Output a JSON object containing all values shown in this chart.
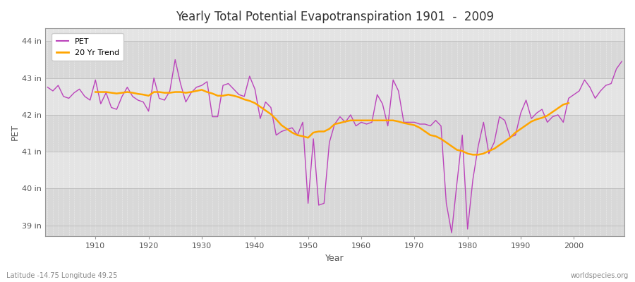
{
  "title": "Yearly Total Potential Evapotranspiration 1901  -  2009",
  "xlabel": "Year",
  "ylabel": "PET",
  "lat_lon_label": "Latitude -14.75 Longitude 49.25",
  "source_label": "worldspecies.org",
  "fig_bg_color": "#ffffff",
  "plot_bg_color": "#e8e8e8",
  "band_light": "#e0e0e0",
  "band_dark": "#d0d0d0",
  "grid_color": "#ffffff",
  "pet_color": "#bb44bb",
  "trend_color": "#ffa500",
  "ylim_min": 38.7,
  "ylim_max": 44.35,
  "ytick_labels": [
    "39 in",
    "40 in",
    "41 in",
    "42 in",
    "43 in",
    "44 in"
  ],
  "ytick_values": [
    39,
    40,
    41,
    42,
    43,
    44
  ],
  "years": [
    1901,
    1902,
    1903,
    1904,
    1905,
    1906,
    1907,
    1908,
    1909,
    1910,
    1911,
    1912,
    1913,
    1914,
    1915,
    1916,
    1917,
    1918,
    1919,
    1920,
    1921,
    1922,
    1923,
    1924,
    1925,
    1926,
    1927,
    1928,
    1929,
    1930,
    1931,
    1932,
    1933,
    1934,
    1935,
    1936,
    1937,
    1938,
    1939,
    1940,
    1941,
    1942,
    1943,
    1944,
    1945,
    1946,
    1947,
    1948,
    1949,
    1950,
    1951,
    1952,
    1953,
    1954,
    1955,
    1956,
    1957,
    1958,
    1959,
    1960,
    1961,
    1962,
    1963,
    1964,
    1965,
    1966,
    1967,
    1968,
    1969,
    1970,
    1971,
    1972,
    1973,
    1974,
    1975,
    1976,
    1977,
    1978,
    1979,
    1980,
    1981,
    1982,
    1983,
    1984,
    1985,
    1986,
    1987,
    1988,
    1989,
    1990,
    1991,
    1992,
    1993,
    1994,
    1995,
    1996,
    1997,
    1998,
    1999,
    2000,
    2001,
    2002,
    2003,
    2004,
    2005,
    2006,
    2007,
    2008,
    2009
  ],
  "pet_values": [
    42.75,
    42.65,
    42.8,
    42.5,
    42.45,
    42.6,
    42.7,
    42.5,
    42.4,
    42.95,
    42.3,
    42.6,
    42.2,
    42.15,
    42.5,
    42.75,
    42.5,
    42.4,
    42.35,
    42.1,
    43.0,
    42.45,
    42.4,
    42.65,
    43.5,
    42.85,
    42.35,
    42.6,
    42.75,
    42.8,
    42.9,
    41.95,
    41.95,
    42.8,
    42.85,
    42.7,
    42.55,
    42.5,
    43.05,
    42.7,
    41.9,
    42.35,
    42.2,
    41.45,
    41.55,
    41.6,
    41.65,
    41.45,
    41.8,
    39.6,
    41.35,
    39.55,
    39.6,
    41.25,
    41.75,
    41.95,
    41.8,
    42.0,
    41.7,
    41.8,
    41.75,
    41.8,
    42.55,
    42.3,
    41.7,
    42.95,
    42.65,
    41.8,
    41.8,
    41.8,
    41.75,
    41.75,
    41.7,
    41.85,
    41.7,
    39.6,
    38.8,
    40.15,
    41.45,
    38.9,
    40.25,
    41.15,
    41.8,
    40.95,
    41.25,
    41.95,
    41.85,
    41.4,
    41.45,
    42.05,
    42.4,
    41.9,
    42.05,
    42.15,
    41.8,
    41.95,
    42.0,
    41.8,
    42.45,
    42.55,
    42.65,
    42.95,
    42.75,
    42.45,
    42.65,
    42.8,
    42.85,
    43.25,
    43.45
  ],
  "trend_values": [
    null,
    null,
    null,
    null,
    null,
    null,
    null,
    null,
    null,
    42.62,
    42.62,
    42.62,
    42.6,
    42.58,
    42.6,
    42.62,
    42.6,
    42.57,
    42.55,
    42.52,
    42.62,
    42.62,
    42.6,
    42.6,
    42.62,
    42.62,
    42.6,
    42.62,
    42.65,
    42.68,
    42.62,
    42.58,
    42.52,
    42.52,
    42.55,
    42.52,
    42.48,
    42.42,
    42.38,
    42.32,
    42.22,
    42.12,
    42.02,
    41.88,
    41.72,
    41.62,
    41.52,
    41.45,
    41.42,
    41.38,
    41.52,
    41.55,
    41.55,
    41.62,
    41.75,
    41.78,
    41.82,
    41.85,
    41.85,
    41.85,
    41.85,
    41.85,
    41.85,
    41.85,
    41.85,
    41.85,
    41.82,
    41.78,
    41.75,
    41.72,
    41.65,
    41.55,
    41.45,
    41.42,
    41.35,
    41.25,
    41.15,
    41.05,
    41.02,
    40.95,
    40.92,
    40.92,
    40.95,
    41.02,
    41.08,
    41.18,
    41.28,
    41.38,
    41.52,
    41.62,
    41.72,
    41.82,
    41.88,
    41.92,
    41.98,
    42.08,
    42.18,
    42.28,
    42.32,
    null,
    null,
    null,
    null,
    null,
    null,
    null,
    null,
    null
  ]
}
